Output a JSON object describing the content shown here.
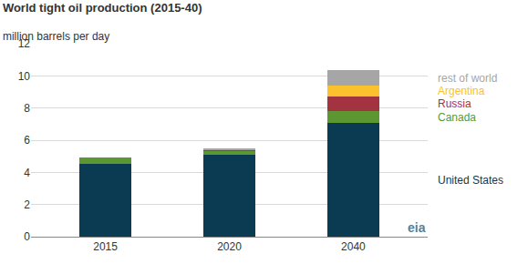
{
  "chart_data": {
    "type": "bar",
    "stacked": true,
    "title": "World tight oil production (2015-40)",
    "subtitle": "million barrels per day",
    "categories": [
      "2015",
      "2020",
      "2040"
    ],
    "series": [
      {
        "name": "United States",
        "color": "#0b3a53",
        "values": [
          4.55,
          5.1,
          7.05
        ]
      },
      {
        "name": "Canada",
        "color": "#5d9732",
        "values": [
          0.35,
          0.25,
          0.75
        ]
      },
      {
        "name": "Russia",
        "color": "#a33340",
        "values": [
          0,
          0.05,
          0.9
        ]
      },
      {
        "name": "Argentina",
        "color": "#fbc22d",
        "values": [
          0,
          0.02,
          0.7
        ]
      },
      {
        "name": "rest of world",
        "color": "#a6a6a6",
        "values": [
          0,
          0.03,
          0.95
        ]
      }
    ],
    "ylim": [
      0,
      12
    ],
    "yticks": [
      0,
      2,
      4,
      6,
      8,
      10,
      12
    ],
    "grid": true,
    "annotations": [
      "eia"
    ]
  }
}
